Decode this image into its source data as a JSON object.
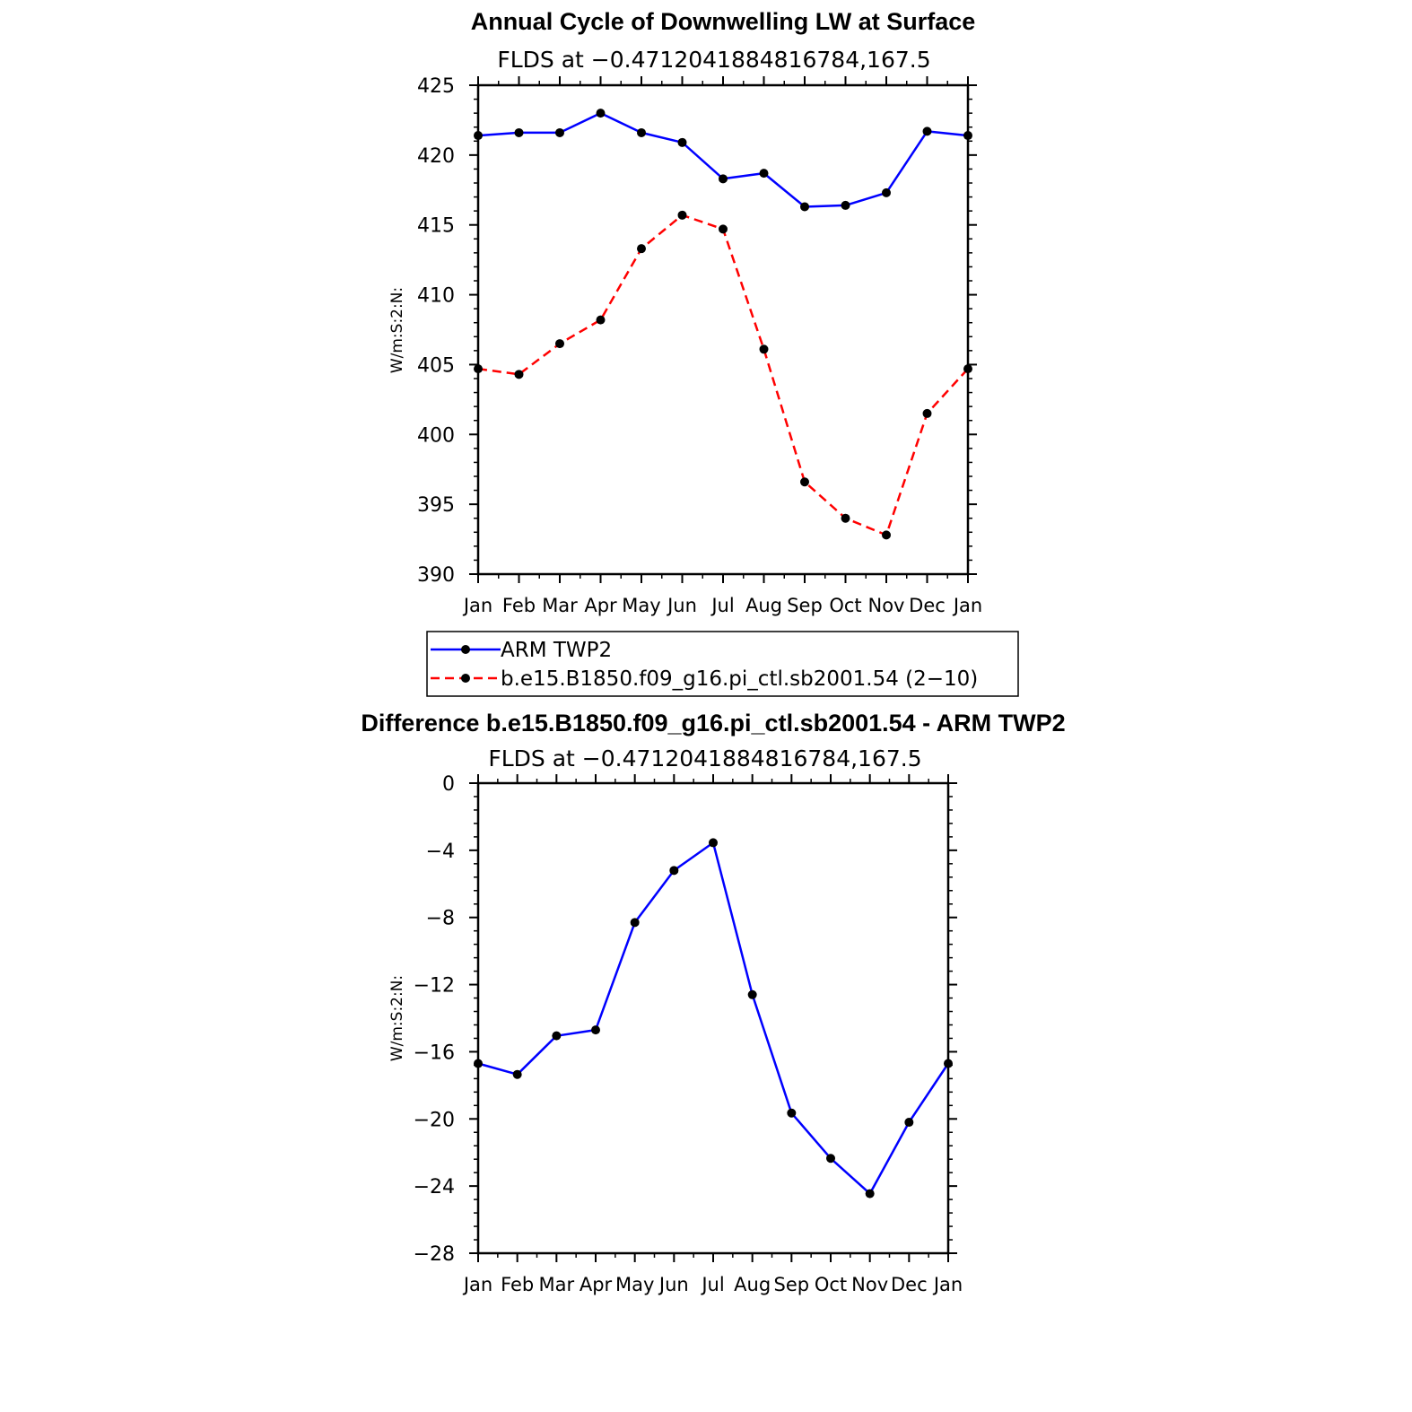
{
  "chart_data": [
    {
      "type": "line",
      "title": "Annual Cycle of Downwelling LW at Surface",
      "subtitle": "FLDS at −0.4712041884816784,167.5",
      "xlabel": "",
      "ylabel": "W/m:S:2:N:",
      "categories": [
        "Jan",
        "Feb",
        "Mar",
        "Apr",
        "May",
        "Jun",
        "Jul",
        "Aug",
        "Sep",
        "Oct",
        "Nov",
        "Dec",
        "Jan"
      ],
      "ylim": [
        390,
        425
      ],
      "yticks": [
        "390",
        "395",
        "400",
        "405",
        "410",
        "415",
        "420",
        "425"
      ],
      "series": [
        {
          "name": "ARM TWP2",
          "color": "#0000ff",
          "style": "solid",
          "values": [
            421.4,
            421.6,
            421.6,
            423.0,
            421.6,
            420.9,
            418.3,
            418.7,
            416.3,
            416.4,
            417.3,
            421.7,
            421.4
          ]
        },
        {
          "name": "b.e15.B1850.f09_g16.pi_ctl.sb2001.54 (2−10)",
          "color": "#ff0000",
          "style": "dashed",
          "values": [
            404.7,
            404.3,
            406.5,
            408.2,
            413.3,
            415.7,
            414.7,
            406.1,
            396.6,
            394.0,
            392.8,
            401.5,
            404.7
          ]
        }
      ],
      "legend": "below"
    },
    {
      "type": "line",
      "title": "Difference b.e15.B1850.f09_g16.pi_ctl.sb2001.54 - ARM TWP2",
      "subtitle": "FLDS at −0.4712041884816784,167.5",
      "xlabel": "",
      "ylabel": "W/m:S:2:N:",
      "categories": [
        "Jan",
        "Feb",
        "Mar",
        "Apr",
        "May",
        "Jun",
        "Jul",
        "Aug",
        "Sep",
        "Oct",
        "Nov",
        "Dec",
        "Jan"
      ],
      "ylim": [
        -28,
        0
      ],
      "yticks": [
        "−28",
        "−24",
        "−20",
        "−16",
        "−12",
        "−8",
        "−4",
        "0"
      ],
      "series": [
        {
          "name": "Difference",
          "color": "#0000ff",
          "style": "solid",
          "values": [
            -16.7,
            -17.35,
            -15.05,
            -14.7,
            -8.3,
            -5.2,
            -3.55,
            -12.6,
            -19.65,
            -22.35,
            -24.45,
            -20.2,
            -16.7
          ]
        }
      ]
    }
  ]
}
